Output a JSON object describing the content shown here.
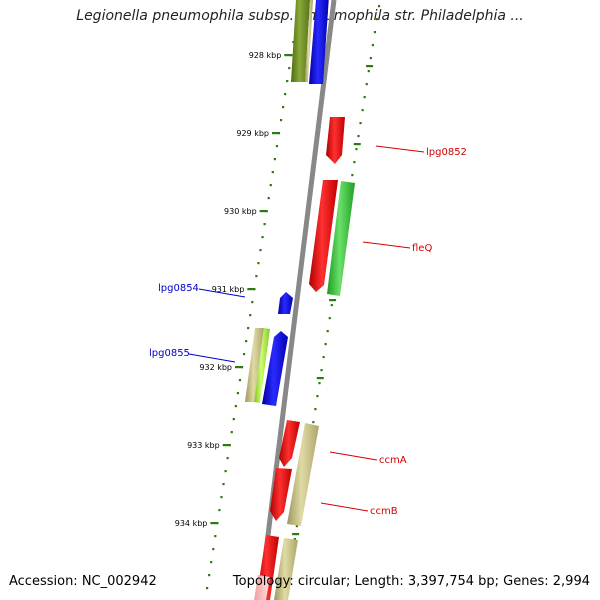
{
  "title": "Legionella pneumophila subsp. pneumophila str. Philadelphia ...",
  "accession": "Accession: NC_002942",
  "summary": "Topology: circular; Length: 3,397,754 bp; Genes: 2,994",
  "colors": {
    "backbone": "#888888",
    "tick_green": "#2d7a10",
    "label_red": "#d40000",
    "label_blue": "#0000c8",
    "gene_red": "#ff0000",
    "gene_blue": "#0000ff",
    "gene_green": "#3cc83c",
    "gene_olive": "#6a8a20",
    "gene_khaki": "#c8c07a",
    "gene_lime": "#a0e040"
  },
  "scale": [
    {
      "label": "928 kbp"
    },
    {
      "label": "929 kbp"
    },
    {
      "label": "930 kbp"
    },
    {
      "label": "931 kbp"
    },
    {
      "label": "932 kbp"
    },
    {
      "label": "933 kbp"
    },
    {
      "label": "934 kbp"
    }
  ],
  "gene_labels": [
    {
      "text": "lpg0852",
      "color": "red"
    },
    {
      "text": "fleQ",
      "color": "red"
    },
    {
      "text": "lpg0854",
      "color": "blue"
    },
    {
      "text": "lpg0855",
      "color": "blue"
    },
    {
      "text": "ccmA",
      "color": "red"
    },
    {
      "text": "ccmB",
      "color": "red"
    }
  ]
}
